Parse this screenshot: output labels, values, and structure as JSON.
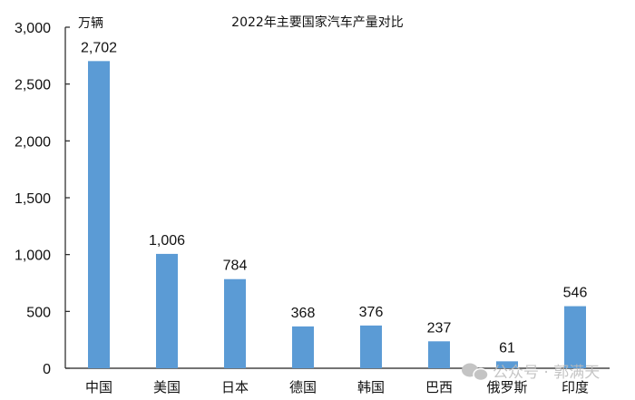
{
  "chart_data": {
    "type": "bar",
    "title": "2022年主要国家汽车产量对比",
    "ylabel": "万辆",
    "xlabel": "",
    "categories": [
      "中国",
      "美国",
      "日本",
      "德国",
      "韩国",
      "巴西",
      "俄罗斯",
      "印度"
    ],
    "values": [
      2702,
      1006,
      784,
      368,
      376,
      237,
      61,
      546
    ],
    "data_labels": [
      "2,702",
      "1,006",
      "784",
      "368",
      "376",
      "237",
      "61",
      "546"
    ],
    "ylim": [
      0,
      3000
    ],
    "yticks": [
      0,
      500,
      1000,
      1500,
      2000,
      2500,
      3000
    ],
    "ytick_labels": [
      "0",
      "500",
      "1,000",
      "1,500",
      "2,000",
      "2,500",
      "3,000"
    ],
    "grid": false,
    "legend": "none",
    "bar_color": "#5b9bd5"
  },
  "watermark": "公众号 · 郭满天"
}
